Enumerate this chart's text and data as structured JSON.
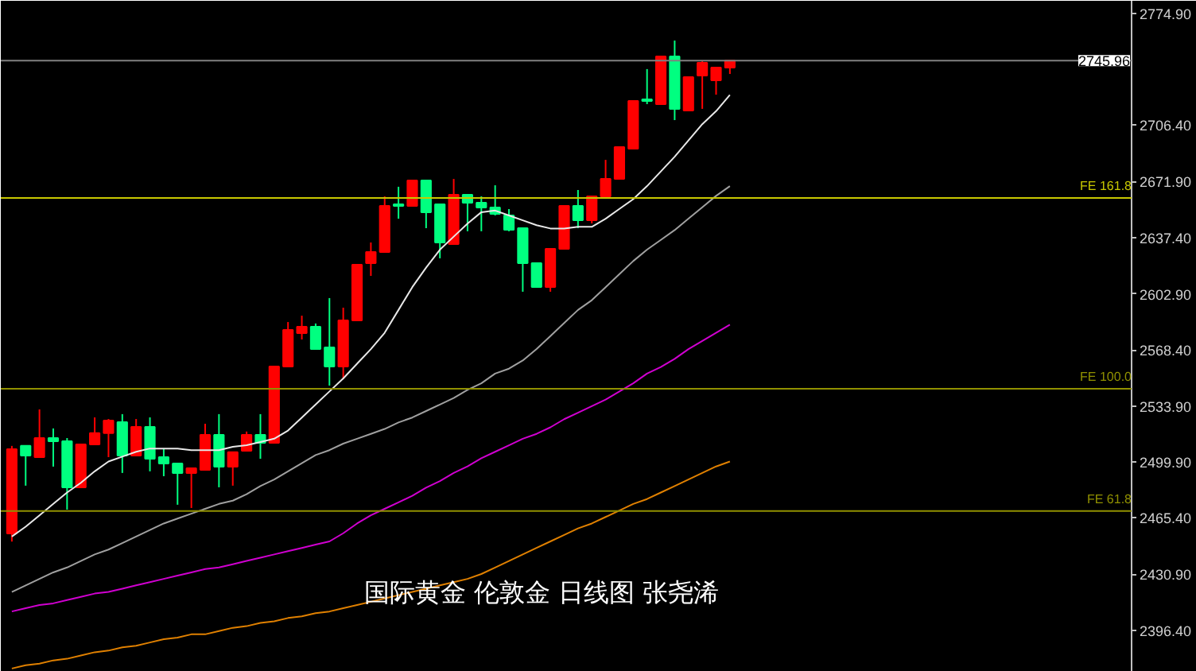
{
  "chart_data": {
    "type": "candlestick",
    "categories": [
      null,
      null,
      null,
      null,
      null,
      null,
      null,
      null,
      null,
      null,
      null,
      null,
      null,
      null,
      null,
      null,
      null,
      null,
      null,
      null,
      null,
      null,
      null,
      null,
      null,
      null,
      null,
      null,
      null,
      null,
      null,
      null,
      null,
      null,
      null,
      null,
      null,
      null,
      null,
      null,
      null,
      null,
      null,
      null,
      null,
      null,
      null,
      null,
      null,
      null,
      null,
      null,
      null
    ],
    "ohlc": [
      [
        2455.9,
        2509.6,
        2450.9,
        2507.6
      ],
      [
        2509.6,
        2509.6,
        2485.2,
        2503.7
      ],
      [
        2502.7,
        2532.0,
        2502.7,
        2514.4
      ],
      [
        2514.4,
        2520.3,
        2496.9,
        2512.5
      ],
      [
        2512.5,
        2514.4,
        2470.5,
        2484.2
      ],
      [
        2484.2,
        2510.5,
        2484.2,
        2510.5
      ],
      [
        2510.5,
        2527.1,
        2510.5,
        2517.4
      ],
      [
        2517.4,
        2526.1,
        2502.7,
        2525.2
      ],
      [
        2524.2,
        2529.1,
        2493.0,
        2503.7
      ],
      [
        2503.7,
        2526.1,
        2503.7,
        2521.3
      ],
      [
        2521.3,
        2527.1,
        2494.0,
        2501.7
      ],
      [
        2502.7,
        2507.6,
        2491.0,
        2498.8
      ],
      [
        2498.8,
        2498.8,
        2473.5,
        2493.0
      ],
      [
        2493.0,
        2495.9,
        2471.5,
        2495.9
      ],
      [
        2494.9,
        2523.2,
        2494.9,
        2516.4
      ],
      [
        2516.4,
        2529.1,
        2484.2,
        2496.9
      ],
      [
        2496.9,
        2505.7,
        2485.2,
        2505.7
      ],
      [
        2506.6,
        2518.4,
        2506.6,
        2516.4
      ],
      [
        2516.4,
        2529.1,
        2501.7,
        2511.5
      ],
      [
        2511.5,
        2558.3,
        2511.5,
        2558.3
      ],
      [
        2558.3,
        2585.6,
        2558.3,
        2580.8
      ],
      [
        2578.8,
        2589.5,
        2574.9,
        2582.7
      ],
      [
        2582.7,
        2584.7,
        2569.1,
        2569.1
      ],
      [
        2570.0,
        2600.3,
        2546.6,
        2558.3
      ],
      [
        2558.3,
        2594.4,
        2550.5,
        2586.6
      ],
      [
        2586.6,
        2620.8,
        2586.6,
        2620.8
      ],
      [
        2621.7,
        2634.4,
        2613.9,
        2628.6
      ],
      [
        2628.6,
        2662.7,
        2628.6,
        2656.9
      ],
      [
        2657.8,
        2668.6,
        2649.0,
        2656.9
      ],
      [
        2656.9,
        2672.5,
        2656.9,
        2672.5
      ],
      [
        2672.5,
        2672.5,
        2643.2,
        2653.0
      ],
      [
        2657.8,
        2657.8,
        2624.7,
        2634.4
      ],
      [
        2633.4,
        2673.4,
        2633.4,
        2663.7
      ],
      [
        2663.7,
        2663.7,
        2641.3,
        2658.8
      ],
      [
        2658.8,
        2662.7,
        2641.3,
        2655.9
      ],
      [
        2655.9,
        2669.5,
        2651.0,
        2652.0
      ],
      [
        2651.0,
        2654.9,
        2641.3,
        2642.2
      ],
      [
        2643.2,
        2643.2,
        2604.2,
        2621.7
      ],
      [
        2621.7,
        2621.7,
        2607.1,
        2607.1
      ],
      [
        2607.1,
        2630.5,
        2604.2,
        2630.5
      ],
      [
        2630.5,
        2656.9,
        2630.5,
        2656.9
      ],
      [
        2656.9,
        2666.6,
        2643.2,
        2648.1
      ],
      [
        2648.1,
        2662.7,
        2646.1,
        2662.7
      ],
      [
        2662.7,
        2685.1,
        2662.7,
        2673.4
      ],
      [
        2673.4,
        2692.9,
        2673.4,
        2692.9
      ],
      [
        2692.0,
        2721.2,
        2692.0,
        2721.2
      ],
      [
        2722.2,
        2740.8,
        2719.3,
        2721.2
      ],
      [
        2719.3,
        2748.6,
        2719.3,
        2748.6
      ],
      [
        2748.6,
        2758.3,
        2709.5,
        2716.4
      ],
      [
        2715.4,
        2735.9,
        2715.4,
        2735.9
      ],
      [
        2736.8,
        2745.6,
        2716.4,
        2744.7
      ],
      [
        2733.9,
        2741.7,
        2725.1,
        2741.7
      ],
      [
        2741.7,
        2746.0,
        2737.8,
        2746.0
      ]
    ],
    "colors": [
      "#ff0000",
      "#00ff80",
      "#ff0000",
      "#00ff80",
      "#00ff80",
      "#ff0000",
      "#ff0000",
      "#ff0000",
      "#00ff80",
      "#ff0000",
      "#00ff80",
      "#00ff80",
      "#00ff80",
      "#ff0000",
      "#ff0000",
      "#00ff80",
      "#ff0000",
      "#ff0000",
      "#00ff80",
      "#ff0000",
      "#ff0000",
      "#ff0000",
      "#00ff80",
      "#00ff80",
      "#ff0000",
      "#ff0000",
      "#ff0000",
      "#ff0000",
      "#00ff80",
      "#ff0000",
      "#00ff80",
      "#00ff80",
      "#ff0000",
      "#00ff80",
      "#00ff80",
      "#00ff80",
      "#00ff80",
      "#00ff80",
      "#00ff80",
      "#ff0000",
      "#ff0000",
      "#00ff80",
      "#ff0000",
      "#ff0000",
      "#ff0000",
      "#ff0000",
      "#00ff80",
      "#ff0000",
      "#00ff80",
      "#ff0000",
      "#ff0000",
      "#ff0000",
      "#ff0000"
    ],
    "series": [
      {
        "type": "line",
        "color": "#e8e8e8",
        "values": [
          2454,
          2460,
          2467,
          2474,
          2481,
          2487,
          2494,
          2500,
          2503,
          2506,
          2508,
          2508,
          2508,
          2507,
          2507,
          2507,
          2509,
          2510,
          2512,
          2514,
          2519,
          2527,
          2535,
          2543,
          2551,
          2560,
          2569,
          2579,
          2593,
          2607,
          2619,
          2630,
          2638,
          2646,
          2653,
          2654,
          2651,
          2648,
          2645,
          2643,
          2643,
          2644,
          2644,
          2649,
          2655,
          2661,
          2669,
          2678,
          2687,
          2697,
          2707,
          2715,
          2725
        ]
      },
      {
        "type": "line",
        "color": "#a0a0a0",
        "values": [
          2420,
          2424,
          2428,
          2432,
          2435,
          2439,
          2443,
          2446,
          2450,
          2454,
          2458,
          2462,
          2465,
          2468,
          2471,
          2474,
          2476,
          2480,
          2485,
          2489,
          2494,
          2499,
          2504,
          2507,
          2511,
          2514,
          2517,
          2520,
          2524,
          2527,
          2531,
          2535,
          2539,
          2544,
          2548,
          2554,
          2557,
          2562,
          2569,
          2577,
          2585,
          2593,
          2599,
          2607,
          2615,
          2623,
          2630,
          2636,
          2642,
          2649,
          2656,
          2663,
          2669
        ]
      },
      {
        "type": "line",
        "color": "#d000d0",
        "values": [
          2408,
          2410,
          2412,
          2413,
          2415,
          2417,
          2419,
          2420,
          2422,
          2424,
          2426,
          2428,
          2430,
          2432,
          2434,
          2435,
          2437,
          2439,
          2441,
          2443,
          2445,
          2447,
          2449,
          2451,
          2456,
          2462,
          2467,
          2471,
          2475,
          2479,
          2484,
          2488,
          2493,
          2497,
          2502,
          2506,
          2510,
          2514,
          2517,
          2521,
          2526,
          2530,
          2534,
          2538,
          2543,
          2548,
          2554,
          2558,
          2563,
          2569,
          2574,
          2579,
          2584
        ]
      },
      {
        "type": "line",
        "color": "#e08000",
        "values": [
          2373,
          2375,
          2376,
          2378,
          2379,
          2381,
          2383,
          2384,
          2386,
          2387,
          2389,
          2391,
          2392,
          2394,
          2394,
          2396,
          2398,
          2399,
          2401,
          2402,
          2404,
          2405,
          2407,
          2408,
          2410,
          2412,
          2414,
          2416,
          2418,
          2420,
          2422,
          2424,
          2426,
          2428,
          2431,
          2435,
          2439,
          2443,
          2447,
          2451,
          2455,
          2459,
          2462,
          2466,
          2470,
          2474,
          2477,
          2481,
          2485,
          2489,
          2493,
          2497,
          2500
        ]
      }
    ],
    "ylim": [
      2371.0,
      2782.7
    ],
    "yticks": [
      {
        "value": 2774.9,
        "label": "2774.90"
      },
      {
        "value": 2706.4,
        "label": "2706.40"
      },
      {
        "value": 2671.9,
        "label": "2671.90"
      },
      {
        "value": 2637.4,
        "label": "2637.40"
      },
      {
        "value": 2602.9,
        "label": "2602.90"
      },
      {
        "value": 2568.4,
        "label": "2568.40"
      },
      {
        "value": 2533.9,
        "label": "2533.90"
      },
      {
        "value": 2499.9,
        "label": "2499.90"
      },
      {
        "value": 2465.4,
        "label": "2465.40"
      },
      {
        "value": 2430.9,
        "label": "2430.90"
      },
      {
        "value": 2396.4,
        "label": "2396.40"
      }
    ],
    "ref_lines": [
      {
        "axis": "y",
        "value": 2745.96,
        "label": "2745.96",
        "color": "#808080"
      },
      {
        "axis": "y",
        "value": 2661.7,
        "label": "FE 161.8",
        "color": "#c8c800"
      },
      {
        "axis": "y",
        "value": 2544.7,
        "label": "FE 100.0",
        "color": "#909000"
      },
      {
        "axis": "y",
        "value": 2469.6,
        "label": "FE 61.8",
        "color": "#909000"
      }
    ],
    "annotations": [
      "国际黄金 伦敦金 日线图 张尧浠"
    ],
    "tick_labels": "y"
  }
}
